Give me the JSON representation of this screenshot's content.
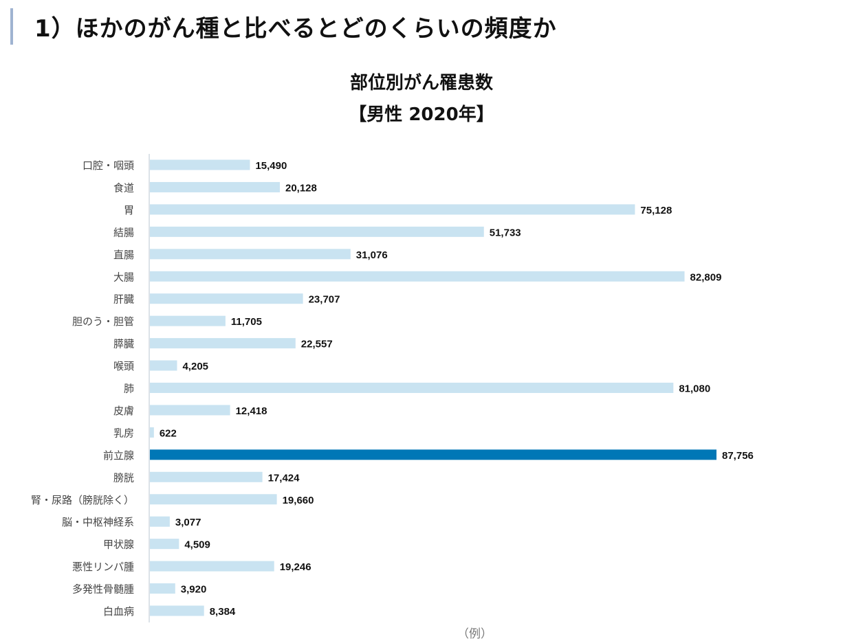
{
  "heading": "1）ほかのがん種と比べるとどのくらいの頻度か",
  "note": "（例）",
  "chart_data": {
    "type": "bar",
    "orientation": "horizontal",
    "title": "部位別がん罹患数",
    "subtitle": "【男性 2020年】",
    "categories": [
      "口腔・咽頭",
      "食道",
      "胃",
      "結腸",
      "直腸",
      "大腸",
      "肝臓",
      "胆のう・胆管",
      "膵臓",
      "喉頭",
      "肺",
      "皮膚",
      "乳房",
      "前立腺",
      "膀胱",
      "腎・尿路（膀胱除く）",
      "脳・中枢神経系",
      "甲状腺",
      "悪性リンパ腫",
      "多発性骨髄腫",
      "白血病"
    ],
    "values": [
      15490,
      20128,
      75128,
      51733,
      31076,
      82809,
      23707,
      11705,
      22557,
      4205,
      81080,
      12418,
      622,
      87756,
      17424,
      19660,
      3077,
      4509,
      19246,
      3920,
      8384
    ],
    "highlight": "前立腺",
    "colors": {
      "bar": "#c9e3f1",
      "highlight": "#0077b6"
    },
    "grid": false,
    "data_labels": true
  }
}
